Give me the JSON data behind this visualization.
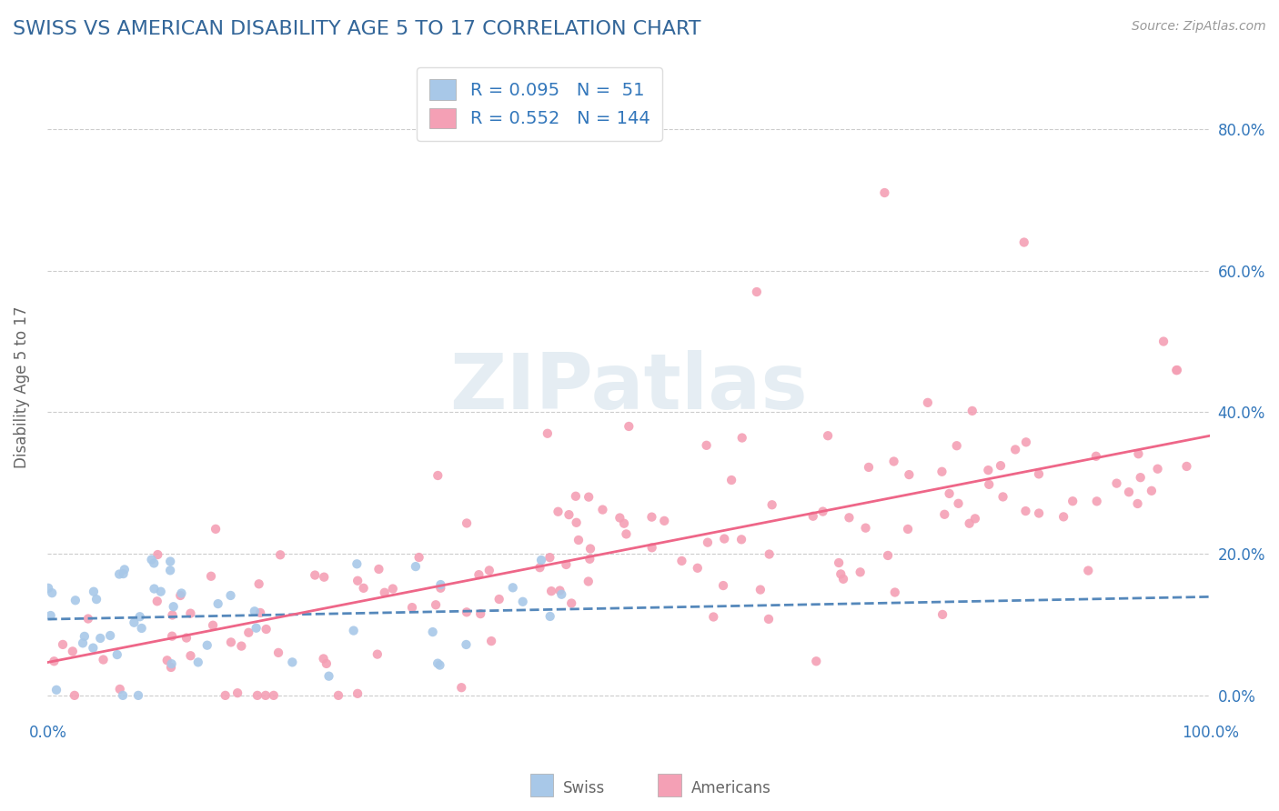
{
  "title": "SWISS VS AMERICAN DISABILITY AGE 5 TO 17 CORRELATION CHART",
  "source": "Source: ZipAtlas.com",
  "ylabel": "Disability Age 5 to 17",
  "xlim": [
    0.0,
    1.0
  ],
  "ylim": [
    -0.03,
    0.9
  ],
  "xticks": [
    0.0,
    1.0
  ],
  "xticklabels": [
    "0.0%",
    "100.0%"
  ],
  "yticks": [
    0.0,
    0.2,
    0.4,
    0.6,
    0.8
  ],
  "yticklabels_right": [
    "0.0%",
    "20.0%",
    "40.0%",
    "60.0%",
    "80.0%"
  ],
  "swiss_color": "#a8c8e8",
  "american_color": "#f4a0b5",
  "swiss_line_color": "#5588bb",
  "american_line_color": "#ee6688",
  "swiss_R": 0.095,
  "swiss_N": 51,
  "american_R": 0.552,
  "american_N": 144,
  "legend_swiss_label": "Swiss",
  "legend_american_label": "Americans",
  "watermark_text": "ZIPatlas",
  "background_color": "#ffffff",
  "grid_color": "#cccccc",
  "title_color": "#336699",
  "axis_label_color": "#666666",
  "tick_color": "#3377bb",
  "title_fontsize": 16,
  "tick_fontsize": 12,
  "ylabel_fontsize": 12,
  "legend_fontsize": 14,
  "source_fontsize": 10
}
